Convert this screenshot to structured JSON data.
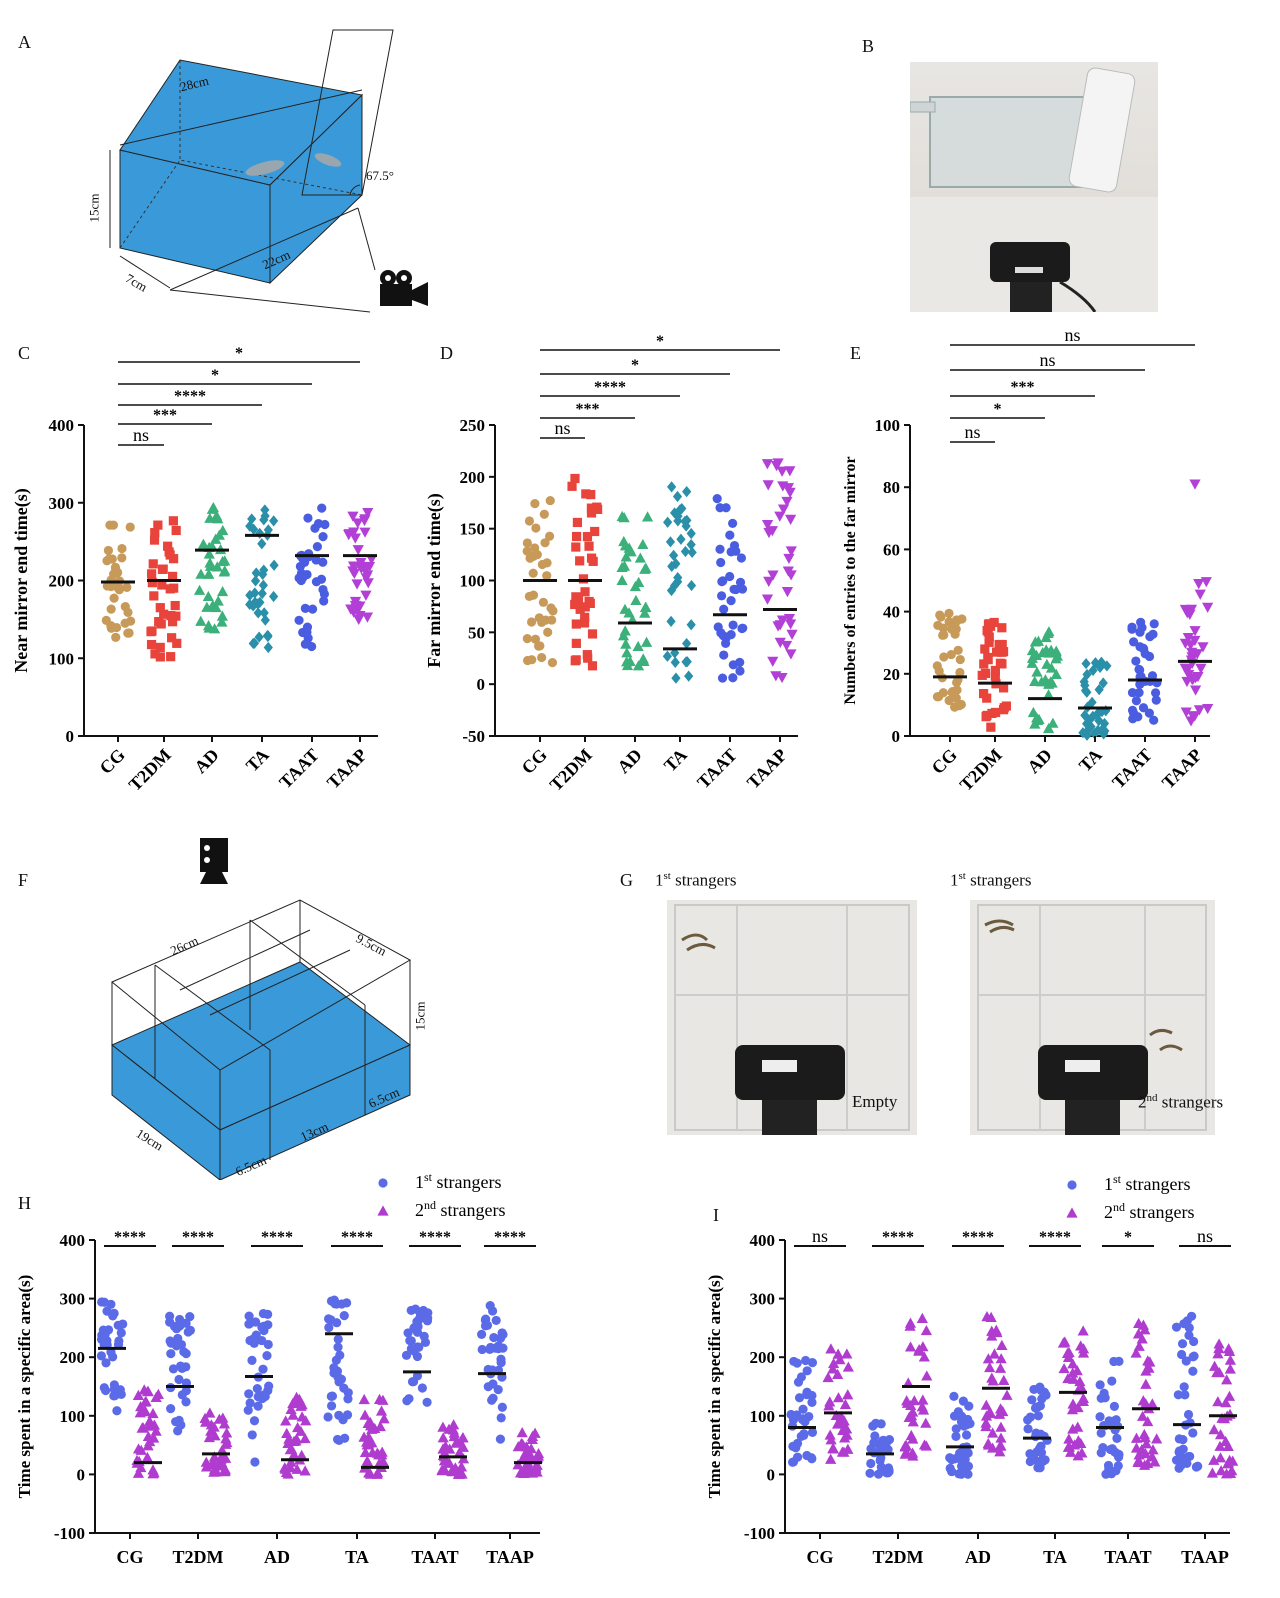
{
  "panels": {
    "A": "A",
    "B": "B",
    "C": "C",
    "D": "D",
    "E": "E",
    "F": "F",
    "G": "G",
    "H": "H",
    "I": "I"
  },
  "panelA": {
    "dim_len": "28cm",
    "dim_height": "15cm",
    "dim_width": "7cm",
    "dim_base": "22cm",
    "angle": "67.5°",
    "tank_color": "#3a9ad9"
  },
  "panelF": {
    "dim_len": "26cm",
    "dim_w": "9.5cm",
    "dim_h": "15cm",
    "dim_a": "6.5cm",
    "dim_b": "13cm",
    "dim_c": "19cm",
    "dim_d": "6.5cm",
    "tank_color": "#3a9ad9"
  },
  "panelG": {
    "left_label": "st strangers",
    "left_sup": "1",
    "right_label": "st strangers",
    "right_sup": "1",
    "empty": "Empty",
    "second_label": "strangers",
    "second_sup": "2nd"
  },
  "groups": [
    "CG",
    "T2DM",
    "AD",
    "TA",
    "TAAT",
    "TAAP"
  ],
  "colors": {
    "CG": "#c79a5a",
    "T2DM": "#e8443c",
    "AD": "#3bb07a",
    "TA": "#2a8fa8",
    "TAAT": "#4a5de0",
    "TAAP": "#b23fd6",
    "first": "#5b6be8",
    "second": "#b03ccf"
  },
  "chart_data": [
    {
      "id": "C",
      "type": "scatter",
      "ylabel": "Near mirror end time(s)",
      "ylim": [
        0,
        400
      ],
      "yticks": [
        0,
        100,
        200,
        300,
        400
      ],
      "categories": [
        "CG",
        "T2DM",
        "AD",
        "TA",
        "TAAT",
        "TAAP"
      ],
      "markers": [
        "circle",
        "square",
        "triangle",
        "diamond",
        "circle",
        "triangle-down"
      ],
      "means": [
        198,
        200,
        239,
        258,
        232,
        232
      ],
      "spread": [
        [
          118,
          278
        ],
        [
          100,
          290
        ],
        [
          132,
          298
        ],
        [
          100,
          298
        ],
        [
          115,
          300
        ],
        [
          150,
          292
        ]
      ],
      "n": 36,
      "comparisons": [
        {
          "from": "CG",
          "to": "T2DM",
          "label": "ns"
        },
        {
          "from": "CG",
          "to": "AD",
          "label": "***"
        },
        {
          "from": "CG",
          "to": "TA",
          "label": "****"
        },
        {
          "from": "CG",
          "to": "TAAT",
          "label": "*"
        },
        {
          "from": "CG",
          "to": "TAAP",
          "label": "*"
        }
      ]
    },
    {
      "id": "D",
      "type": "scatter",
      "ylabel": "Far mirror end time(s)",
      "ylim": [
        -50,
        250
      ],
      "yticks": [
        -50,
        0,
        50,
        100,
        150,
        200,
        250
      ],
      "categories": [
        "CG",
        "T2DM",
        "AD",
        "TA",
        "TAAT",
        "TAAP"
      ],
      "markers": [
        "circle",
        "square",
        "triangle",
        "diamond",
        "circle",
        "triangle-down"
      ],
      "means": [
        100,
        100,
        59,
        34,
        67,
        72
      ],
      "spread": [
        [
          20,
          182
        ],
        [
          8,
          200
        ],
        [
          0,
          165
        ],
        [
          0,
          195
        ],
        [
          0,
          185
        ],
        [
          5,
          215
        ]
      ],
      "n": 36,
      "comparisons": [
        {
          "from": "CG",
          "to": "T2DM",
          "label": "ns"
        },
        {
          "from": "CG",
          "to": "AD",
          "label": "***"
        },
        {
          "from": "CG",
          "to": "TA",
          "label": "****"
        },
        {
          "from": "CG",
          "to": "TAAT",
          "label": "*"
        },
        {
          "from": "CG",
          "to": "TAAP",
          "label": "*"
        }
      ]
    },
    {
      "id": "E",
      "type": "scatter",
      "ylabel": "Numbers of entries to the far mirror",
      "ylim": [
        0,
        100
      ],
      "yticks": [
        0,
        20,
        40,
        60,
        80,
        100
      ],
      "categories": [
        "CG",
        "T2DM",
        "AD",
        "TA",
        "TAAT",
        "TAAP"
      ],
      "markers": [
        "circle",
        "square",
        "triangle",
        "diamond",
        "circle",
        "triangle-down"
      ],
      "means": [
        19,
        17,
        12,
        9,
        18,
        24
      ],
      "spread": [
        [
          9,
          40
        ],
        [
          2,
          37
        ],
        [
          1,
          34
        ],
        [
          0,
          24
        ],
        [
          5,
          37
        ],
        [
          0,
          50
        ]
      ],
      "outliers": [
        null,
        null,
        null,
        null,
        null,
        81
      ],
      "n": 36,
      "comparisons": [
        {
          "from": "CG",
          "to": "T2DM",
          "label": "ns"
        },
        {
          "from": "CG",
          "to": "AD",
          "label": "*"
        },
        {
          "from": "CG",
          "to": "TA",
          "label": "***"
        },
        {
          "from": "CG",
          "to": "TAAT",
          "label": "ns"
        },
        {
          "from": "CG",
          "to": "TAAP",
          "label": "ns"
        }
      ]
    },
    {
      "id": "H",
      "type": "scatter",
      "ylabel": "Time spent in a specific area(s)",
      "ylim": [
        -100,
        400
      ],
      "yticks": [
        -100,
        0,
        100,
        200,
        300,
        400
      ],
      "categories": [
        "CG",
        "T2DM",
        "AD",
        "TA",
        "TAAT",
        "TAAP"
      ],
      "legend": [
        {
          "sup": "st",
          "base": "1",
          "rest": " strangers"
        },
        {
          "sup": "nd",
          "base": "2",
          "rest": " strangers"
        }
      ],
      "series": [
        {
          "name": "1st strangers",
          "marker": "circle",
          "means": [
            215,
            150,
            167,
            240,
            175,
            172
          ],
          "spread": [
            [
              50,
              295
            ],
            [
              40,
              280
            ],
            [
              15,
              280
            ],
            [
              40,
              298
            ],
            [
              85,
              285
            ],
            [
              30,
              290
            ]
          ]
        },
        {
          "name": "2nd strangers",
          "marker": "triangle",
          "means": [
            20,
            35,
            25,
            12,
            30,
            20
          ],
          "spread": [
            [
              0,
              150
            ],
            [
              0,
              105
            ],
            [
              0,
              160
            ],
            [
              0,
              130
            ],
            [
              0,
              85
            ],
            [
              0,
              75
            ]
          ]
        }
      ],
      "n": 34,
      "signif": [
        "****",
        "****",
        "****",
        "****",
        "****",
        "****"
      ]
    },
    {
      "id": "I",
      "type": "scatter",
      "ylabel": "Time spent in a specific area(s)",
      "ylim": [
        -100,
        400
      ],
      "yticks": [
        -100,
        0,
        100,
        200,
        300,
        400
      ],
      "categories": [
        "CG",
        "T2DM",
        "AD",
        "TA",
        "TAAT",
        "TAAP"
      ],
      "legend": [
        {
          "sup": "st",
          "base": "1",
          "rest": " strangers"
        },
        {
          "sup": "nd",
          "base": "2",
          "rest": " strangers"
        }
      ],
      "series": [
        {
          "name": "1st strangers",
          "marker": "circle",
          "means": [
            80,
            35,
            47,
            62,
            80,
            85
          ],
          "spread": [
            [
              20,
              205
            ],
            [
              0,
              100
            ],
            [
              0,
              145
            ],
            [
              10,
              175
            ],
            [
              0,
              200
            ],
            [
              10,
              270
            ]
          ]
        },
        {
          "name": "2nd strangers",
          "marker": "triangle",
          "means": [
            105,
            150,
            147,
            140,
            112,
            100
          ],
          "spread": [
            [
              25,
              220
            ],
            [
              30,
              270
            ],
            [
              35,
              280
            ],
            [
              30,
              250
            ],
            [
              15,
              280
            ],
            [
              0,
              225
            ]
          ]
        }
      ],
      "n": 34,
      "signif": [
        "ns",
        "****",
        "****",
        "****",
        "*",
        "ns"
      ]
    }
  ]
}
